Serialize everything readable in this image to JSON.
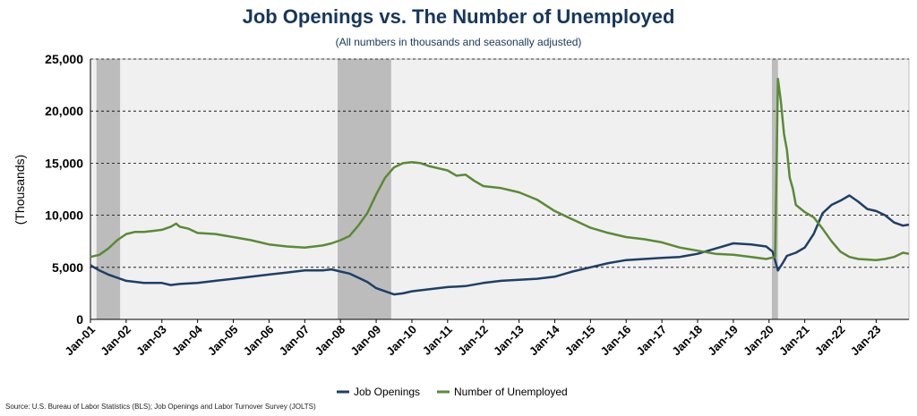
{
  "chart_data": {
    "type": "line",
    "title": "Job Openings vs. The Number of Unemployed",
    "subtitle": "(All numbers in thousands and seasonally adjusted)",
    "ylabel": "(Thousands)",
    "xlabel": "",
    "ylim": [
      0,
      25000
    ],
    "yticks": [
      0,
      5000,
      10000,
      15000,
      20000,
      25000
    ],
    "ytick_labels": [
      "0",
      "5,000",
      "10,000",
      "15,000",
      "20,000",
      "25,000"
    ],
    "xlim": [
      2001.0,
      2023.917
    ],
    "xtick_labels": [
      "Jan-01",
      "Jan-02",
      "Jan-03",
      "Jan-04",
      "Jan-05",
      "Jan-06",
      "Jan-07",
      "Jan-08",
      "Jan-09",
      "Jan-10",
      "Jan-11",
      "Jan-12",
      "Jan-13",
      "Jan-14",
      "Jan-15",
      "Jan-16",
      "Jan-17",
      "Jan-18",
      "Jan-19",
      "Jan-20",
      "Jan-21",
      "Jan-22",
      "Jan-23"
    ],
    "grid": "horizontal dashed",
    "recessions": [
      [
        2001.17,
        2001.83
      ],
      [
        2007.92,
        2009.42
      ],
      [
        2020.08,
        2020.25
      ]
    ],
    "legend": "bottom-center",
    "series": [
      {
        "name": "Job Openings",
        "color": "#1f3f66",
        "points": [
          [
            2001.0,
            5200
          ],
          [
            2001.25,
            4700
          ],
          [
            2001.5,
            4300
          ],
          [
            2001.75,
            4000
          ],
          [
            2002.0,
            3700
          ],
          [
            2002.5,
            3500
          ],
          [
            2003.0,
            3500
          ],
          [
            2003.25,
            3300
          ],
          [
            2003.5,
            3400
          ],
          [
            2004.0,
            3500
          ],
          [
            2004.5,
            3700
          ],
          [
            2005.0,
            3900
          ],
          [
            2005.5,
            4100
          ],
          [
            2006.0,
            4300
          ],
          [
            2006.5,
            4500
          ],
          [
            2007.0,
            4700
          ],
          [
            2007.5,
            4700
          ],
          [
            2007.75,
            4800
          ],
          [
            2008.0,
            4600
          ],
          [
            2008.25,
            4400
          ],
          [
            2008.5,
            4000
          ],
          [
            2008.75,
            3600
          ],
          [
            2009.0,
            3000
          ],
          [
            2009.25,
            2700
          ],
          [
            2009.5,
            2400
          ],
          [
            2009.75,
            2500
          ],
          [
            2010.0,
            2700
          ],
          [
            2010.5,
            2900
          ],
          [
            2011.0,
            3100
          ],
          [
            2011.5,
            3200
          ],
          [
            2012.0,
            3500
          ],
          [
            2012.5,
            3700
          ],
          [
            2013.0,
            3800
          ],
          [
            2013.5,
            3900
          ],
          [
            2014.0,
            4100
          ],
          [
            2014.5,
            4600
          ],
          [
            2015.0,
            5000
          ],
          [
            2015.5,
            5400
          ],
          [
            2016.0,
            5700
          ],
          [
            2016.5,
            5800
          ],
          [
            2017.0,
            5900
          ],
          [
            2017.5,
            6000
          ],
          [
            2018.0,
            6300
          ],
          [
            2018.5,
            6800
          ],
          [
            2019.0,
            7300
          ],
          [
            2019.5,
            7200
          ],
          [
            2019.92,
            7000
          ],
          [
            2020.1,
            6500
          ],
          [
            2020.25,
            4700
          ],
          [
            2020.4,
            5500
          ],
          [
            2020.5,
            6100
          ],
          [
            2020.75,
            6400
          ],
          [
            2021.0,
            6900
          ],
          [
            2021.25,
            8200
          ],
          [
            2021.5,
            10200
          ],
          [
            2021.75,
            11000
          ],
          [
            2022.0,
            11400
          ],
          [
            2022.25,
            11900
          ],
          [
            2022.5,
            11300
          ],
          [
            2022.75,
            10600
          ],
          [
            2023.0,
            10400
          ],
          [
            2023.25,
            10000
          ],
          [
            2023.5,
            9300
          ],
          [
            2023.75,
            9000
          ],
          [
            2023.917,
            9100
          ]
        ]
      },
      {
        "name": "Number of Unemployed",
        "color": "#5a8a36",
        "points": [
          [
            2001.0,
            6000
          ],
          [
            2001.25,
            6200
          ],
          [
            2001.5,
            6800
          ],
          [
            2001.75,
            7600
          ],
          [
            2002.0,
            8200
          ],
          [
            2002.25,
            8400
          ],
          [
            2002.5,
            8400
          ],
          [
            2002.75,
            8500
          ],
          [
            2003.0,
            8600
          ],
          [
            2003.25,
            8900
          ],
          [
            2003.4,
            9200
          ],
          [
            2003.5,
            8900
          ],
          [
            2003.75,
            8700
          ],
          [
            2004.0,
            8300
          ],
          [
            2004.5,
            8200
          ],
          [
            2005.0,
            7900
          ],
          [
            2005.5,
            7600
          ],
          [
            2006.0,
            7200
          ],
          [
            2006.5,
            7000
          ],
          [
            2007.0,
            6900
          ],
          [
            2007.5,
            7100
          ],
          [
            2007.75,
            7300
          ],
          [
            2008.0,
            7600
          ],
          [
            2008.25,
            8000
          ],
          [
            2008.5,
            9000
          ],
          [
            2008.75,
            10200
          ],
          [
            2009.0,
            12000
          ],
          [
            2009.25,
            13600
          ],
          [
            2009.5,
            14600
          ],
          [
            2009.75,
            15000
          ],
          [
            2010.0,
            15100
          ],
          [
            2010.25,
            15000
          ],
          [
            2010.5,
            14700
          ],
          [
            2010.75,
            14500
          ],
          [
            2011.0,
            14300
          ],
          [
            2011.25,
            13800
          ],
          [
            2011.5,
            13900
          ],
          [
            2011.75,
            13300
          ],
          [
            2012.0,
            12800
          ],
          [
            2012.5,
            12600
          ],
          [
            2013.0,
            12200
          ],
          [
            2013.5,
            11500
          ],
          [
            2014.0,
            10400
          ],
          [
            2014.5,
            9600
          ],
          [
            2015.0,
            8800
          ],
          [
            2015.5,
            8300
          ],
          [
            2016.0,
            7900
          ],
          [
            2016.5,
            7700
          ],
          [
            2017.0,
            7400
          ],
          [
            2017.5,
            6900
          ],
          [
            2018.0,
            6600
          ],
          [
            2018.5,
            6300
          ],
          [
            2019.0,
            6200
          ],
          [
            2019.5,
            6000
          ],
          [
            2019.92,
            5800
          ],
          [
            2020.17,
            6000
          ],
          [
            2020.25,
            23100
          ],
          [
            2020.33,
            21000
          ],
          [
            2020.42,
            17800
          ],
          [
            2020.5,
            16300
          ],
          [
            2020.58,
            13600
          ],
          [
            2020.67,
            12500
          ],
          [
            2020.75,
            11000
          ],
          [
            2021.0,
            10300
          ],
          [
            2021.25,
            9800
          ],
          [
            2021.5,
            8700
          ],
          [
            2021.75,
            7500
          ],
          [
            2022.0,
            6500
          ],
          [
            2022.25,
            6000
          ],
          [
            2022.5,
            5800
          ],
          [
            2023.0,
            5700
          ],
          [
            2023.25,
            5800
          ],
          [
            2023.5,
            6000
          ],
          [
            2023.75,
            6400
          ],
          [
            2023.917,
            6300
          ]
        ]
      }
    ],
    "source": "Source: U.S. Bureau of Labor Statistics (BLS); Job Openings and Labor Turnover Survey (JOLTS)"
  }
}
